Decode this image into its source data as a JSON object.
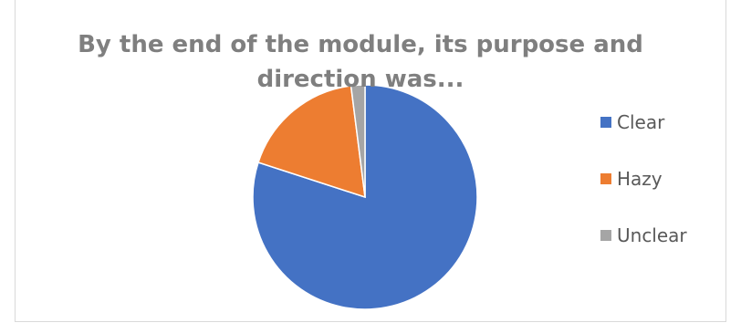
{
  "chart_data": {
    "type": "pie",
    "title": "By the end of the module, its purpose and direction was...",
    "title_lines": [
      "By the end of the module, its purpose and",
      "direction was..."
    ],
    "categories": [
      "Clear",
      "Hazy",
      "Unclear"
    ],
    "values": [
      80,
      18,
      2
    ],
    "colors": [
      "#4472c4",
      "#ed7d31",
      "#a5a5a5"
    ],
    "legend_position": "right"
  }
}
